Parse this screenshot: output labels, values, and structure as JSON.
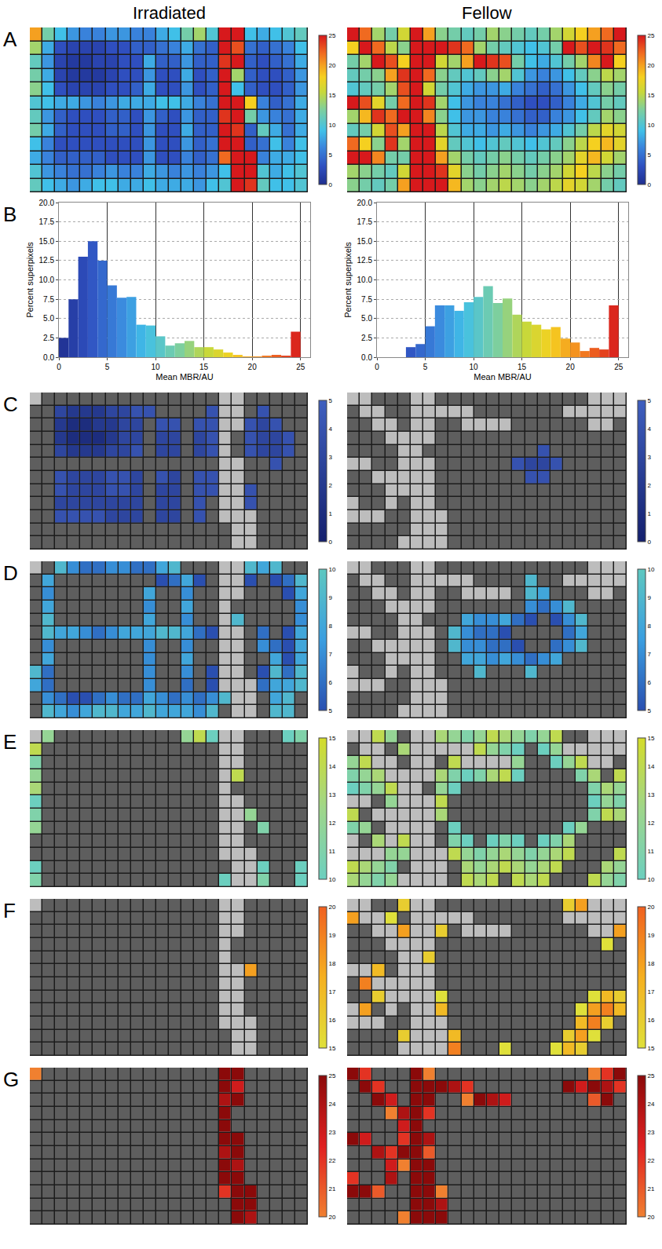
{
  "chart_data": [
    {
      "type": "heatmap",
      "title": "A",
      "columns": [
        "Irradiated",
        "Fellow"
      ],
      "tick_labels": false,
      "cells": {
        "Irradiated": [
          [
            20,
            12,
            9,
            7,
            6,
            6,
            7,
            7,
            6,
            6,
            8,
            9,
            12,
            14,
            10,
            25,
            25,
            9,
            8,
            9,
            10,
            11
          ],
          [
            14,
            8,
            3,
            2,
            2,
            2,
            3,
            3,
            4,
            4,
            5,
            6,
            8,
            5,
            4,
            25,
            23,
            5,
            4,
            5,
            6,
            9
          ],
          [
            11,
            7,
            2,
            1,
            1,
            2,
            2,
            3,
            3,
            8,
            4,
            4,
            7,
            4,
            4,
            24,
            25,
            4,
            3,
            4,
            5,
            8
          ],
          [
            12,
            8,
            2,
            1,
            1,
            1,
            2,
            3,
            3,
            7,
            3,
            3,
            8,
            3,
            4,
            25,
            14,
            4,
            3,
            3,
            4,
            7
          ],
          [
            13,
            9,
            3,
            2,
            2,
            2,
            3,
            3,
            4,
            8,
            3,
            3,
            7,
            3,
            4,
            25,
            9,
            4,
            3,
            3,
            4,
            7
          ],
          [
            10,
            9,
            8,
            8,
            7,
            6,
            7,
            8,
            8,
            8,
            9,
            9,
            8,
            6,
            5,
            25,
            25,
            18,
            6,
            4,
            5,
            8
          ],
          [
            11,
            7,
            4,
            3,
            3,
            3,
            4,
            4,
            3,
            7,
            4,
            3,
            7,
            4,
            4,
            24,
            25,
            12,
            7,
            6,
            5,
            8
          ],
          [
            12,
            8,
            4,
            3,
            3,
            3,
            4,
            4,
            3,
            7,
            3,
            3,
            8,
            4,
            4,
            25,
            24,
            4,
            11,
            8,
            5,
            8
          ],
          [
            9,
            6,
            3,
            3,
            3,
            3,
            3,
            3,
            3,
            7,
            3,
            3,
            7,
            4,
            5,
            25,
            25,
            4,
            5,
            9,
            6,
            9
          ],
          [
            8,
            6,
            4,
            4,
            4,
            4,
            3,
            3,
            3,
            7,
            3,
            3,
            6,
            4,
            5,
            22,
            25,
            25,
            6,
            8,
            8,
            9
          ],
          [
            10,
            7,
            6,
            5,
            5,
            6,
            7,
            6,
            6,
            8,
            7,
            6,
            7,
            6,
            7,
            9,
            25,
            25,
            10,
            8,
            9,
            10
          ],
          [
            11,
            9,
            8,
            7,
            8,
            9,
            9,
            8,
            8,
            9,
            8,
            8,
            8,
            7,
            9,
            10,
            25,
            24,
            11,
            9,
            9,
            10
          ]
        ],
        "Fellow": [
          [
            25,
            22,
            14,
            12,
            16,
            25,
            20,
            13,
            12,
            11,
            12,
            14,
            13,
            12,
            11,
            12,
            14,
            16,
            18,
            20,
            22,
            25
          ],
          [
            18,
            25,
            22,
            15,
            13,
            25,
            25,
            25,
            24,
            22,
            14,
            12,
            11,
            10,
            9,
            10,
            12,
            25,
            23,
            25,
            24,
            22
          ],
          [
            12,
            14,
            25,
            23,
            18,
            25,
            25,
            16,
            14,
            20,
            25,
            24,
            23,
            12,
            9,
            8,
            10,
            12,
            14,
            21,
            25,
            18
          ],
          [
            11,
            12,
            13,
            20,
            24,
            25,
            22,
            13,
            11,
            10,
            11,
            13,
            14,
            10,
            7,
            6,
            7,
            9,
            11,
            13,
            15,
            14
          ],
          [
            10,
            11,
            12,
            14,
            23,
            25,
            16,
            12,
            10,
            8,
            7,
            7,
            8,
            6,
            5,
            4,
            5,
            7,
            9,
            11,
            13,
            12
          ],
          [
            25,
            23,
            17,
            12,
            22,
            25,
            24,
            14,
            9,
            7,
            6,
            6,
            5,
            4,
            3,
            3,
            4,
            6,
            8,
            10,
            12,
            11
          ],
          [
            14,
            19,
            24,
            22,
            25,
            25,
            21,
            13,
            9,
            7,
            7,
            6,
            6,
            5,
            4,
            4,
            6,
            7,
            9,
            11,
            14,
            13
          ],
          [
            11,
            12,
            16,
            23,
            20,
            25,
            25,
            15,
            10,
            8,
            8,
            7,
            8,
            7,
            6,
            7,
            8,
            10,
            12,
            15,
            17,
            16
          ],
          [
            22,
            18,
            13,
            24,
            14,
            25,
            25,
            17,
            11,
            10,
            9,
            10,
            11,
            10,
            9,
            10,
            11,
            13,
            15,
            18,
            19,
            17
          ],
          [
            25,
            25,
            21,
            12,
            12,
            25,
            25,
            20,
            14,
            12,
            11,
            12,
            13,
            12,
            11,
            12,
            13,
            14,
            17,
            19,
            16,
            14
          ],
          [
            14,
            13,
            12,
            11,
            16,
            25,
            25,
            24,
            17,
            13,
            12,
            13,
            14,
            13,
            12,
            13,
            14,
            16,
            18,
            15,
            13,
            12
          ],
          [
            13,
            12,
            11,
            12,
            20,
            25,
            25,
            25,
            19,
            14,
            13,
            14,
            15,
            14,
            13,
            14,
            15,
            17,
            16,
            14,
            12,
            11
          ]
        ]
      },
      "colorbar": {
        "range": [
          0,
          25
        ],
        "ticks": [
          0,
          5,
          10,
          15,
          20,
          25
        ]
      }
    },
    {
      "type": "histogram",
      "title": "B",
      "x_label": "Mean MBR/AU",
      "y_label": "Percent superpixels",
      "bins": [
        0,
        1,
        2,
        3,
        4,
        5,
        6,
        7,
        8,
        9,
        10,
        11,
        12,
        13,
        14,
        15,
        16,
        17,
        18,
        19,
        20,
        21,
        22,
        23,
        24,
        25
      ],
      "series": [
        {
          "values": [
            2.5,
            7.5,
            13,
            15,
            12.5,
            9.3,
            7.7,
            7.8,
            4.2,
            4.1,
            2.7,
            1.5,
            1.8,
            2.1,
            1.3,
            1.3,
            1.0,
            0.6,
            0.3,
            0.1,
            0.1,
            0.2,
            0.3,
            0.2,
            3.3
          ]
        },
        {
          "values": [
            0,
            0,
            0,
            1.3,
            1.7,
            4.0,
            6.7,
            6.7,
            6.0,
            7.1,
            7.8,
            9.2,
            7.0,
            7.6,
            5.5,
            4.6,
            4.2,
            3.6,
            3.9,
            2.4,
            1.9,
            0.8,
            1.2,
            1.0,
            6.7
          ]
        }
      ],
      "xlim": [
        0,
        26
      ],
      "xticks": [
        0,
        5,
        10,
        15,
        20,
        25
      ],
      "ylim": [
        0,
        20
      ],
      "yticks": [
        {
          "value": 0,
          "label": "0.0"
        },
        2.5,
        {
          "value": 5,
          "label": "5.0"
        },
        7.5,
        {
          "value": 10,
          "label": "10.0"
        },
        12.5,
        {
          "value": 15,
          "label": "15.0"
        },
        17.5,
        {
          "value": 20,
          "label": "20.0"
        }
      ],
      "grid": true
    },
    {
      "type": "heatmap",
      "title": "C",
      "tick_labels": false,
      "colorbar": {
        "range": [
          0,
          5
        ],
        "ticks": [
          0,
          1,
          2,
          3,
          4,
          5
        ]
      }
    },
    {
      "type": "heatmap",
      "title": "D",
      "tick_labels": false,
      "colorbar": {
        "range": [
          5,
          10
        ],
        "ticks": [
          5,
          6,
          7,
          8,
          9,
          10
        ]
      }
    },
    {
      "type": "heatmap",
      "title": "E",
      "tick_labels": false,
      "colorbar": {
        "range": [
          10,
          15
        ],
        "ticks": [
          10,
          11,
          12,
          13,
          14,
          15
        ]
      }
    },
    {
      "type": "heatmap",
      "title": "F",
      "tick_labels": false,
      "colorbar": {
        "range": [
          15,
          20
        ],
        "ticks": [
          15,
          16,
          17,
          18,
          19,
          20
        ]
      }
    },
    {
      "type": "heatmap",
      "title": "G",
      "tick_labels": false,
      "colorbar": {
        "range": [
          20,
          25
        ],
        "ticks": [
          20,
          21,
          22,
          23,
          24,
          25
        ]
      }
    }
  ]
}
